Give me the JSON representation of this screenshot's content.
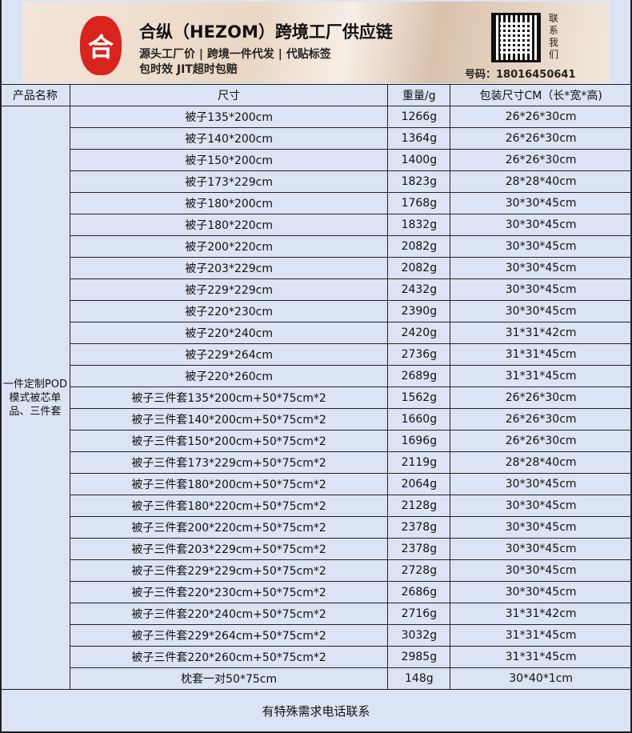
{
  "banner": {
    "logo_char": "合",
    "title": "合纵（HEZOM）跨境工厂供应链",
    "line1": "源头工厂价 | 跨境一件代发 | 代贴标签",
    "line2": "包时效 JIT超时包赔",
    "contact": "联系我们",
    "phone": "号码：18016450641"
  },
  "table": {
    "headers": [
      "产品名称",
      "尺寸",
      "重量/g",
      "包装尺寸CM（长*宽*高)"
    ],
    "product_name": "一件定制POD模式被芯单品、三件套",
    "rows": [
      [
        "被子135*200cm",
        "1266g",
        "26*26*30cm"
      ],
      [
        "被子140*200cm",
        "1364g",
        "26*26*30cm"
      ],
      [
        "被子150*200cm",
        "1400g",
        "26*26*30cm"
      ],
      [
        "被子173*229cm",
        "1823g",
        "28*28*40cm"
      ],
      [
        "被子180*200cm",
        "1768g",
        "30*30*45cm"
      ],
      [
        "被子180*220cm",
        "1832g",
        "30*30*45cm"
      ],
      [
        "被子200*220cm",
        "2082g",
        "30*30*45cm"
      ],
      [
        "被子203*229cm",
        "2082g",
        "30*30*45cm"
      ],
      [
        "被子229*229cm",
        "2432g",
        "30*30*45cm"
      ],
      [
        "被子220*230cm",
        "2390g",
        "30*30*45cm"
      ],
      [
        "被子220*240cm",
        "2420g",
        "31*31*42cm"
      ],
      [
        "被子229*264cm",
        "2736g",
        "31*31*45cm"
      ],
      [
        "被子220*260cm",
        "2689g",
        "31*31*45cm"
      ],
      [
        "被子三件套135*200cm+50*75cm*2",
        "1562g",
        "26*26*30cm"
      ],
      [
        "被子三件套140*200cm+50*75cm*2",
        "1660g",
        "26*26*30cm"
      ],
      [
        "被子三件套150*200cm+50*75cm*2",
        "1696g",
        "26*26*30cm"
      ],
      [
        "被子三件套173*229cm+50*75cm*2",
        "2119g",
        "28*28*40cm"
      ],
      [
        "被子三件套180*200cm+50*75cm*2",
        "2064g",
        "30*30*45cm"
      ],
      [
        "被子三件套180*220cm+50*75cm*2",
        "2128g",
        "30*30*45cm"
      ],
      [
        "被子三件套200*220cm+50*75cm*2",
        "2378g",
        "30*30*45cm"
      ],
      [
        "被子三件套203*229cm+50*75cm*2",
        "2378g",
        "30*30*45cm"
      ],
      [
        "被子三件套229*229cm+50*75cm*2",
        "2728g",
        "30*30*45cm"
      ],
      [
        "被子三件套220*230cm+50*75cm*2",
        "2686g",
        "30*30*45cm"
      ],
      [
        "被子三件套220*240cm+50*75cm*2",
        "2716g",
        "31*31*42cm"
      ],
      [
        "被子三件套229*264cm+50*75cm*2",
        "3032g",
        "31*31*45cm"
      ],
      [
        "被子三件套220*260cm+50*75cm*2",
        "2985g",
        "31*31*45cm"
      ],
      [
        "枕套一对50*75cm",
        "148g",
        "30*40*1cm"
      ]
    ]
  },
  "footer": "有特殊需求电话联系"
}
